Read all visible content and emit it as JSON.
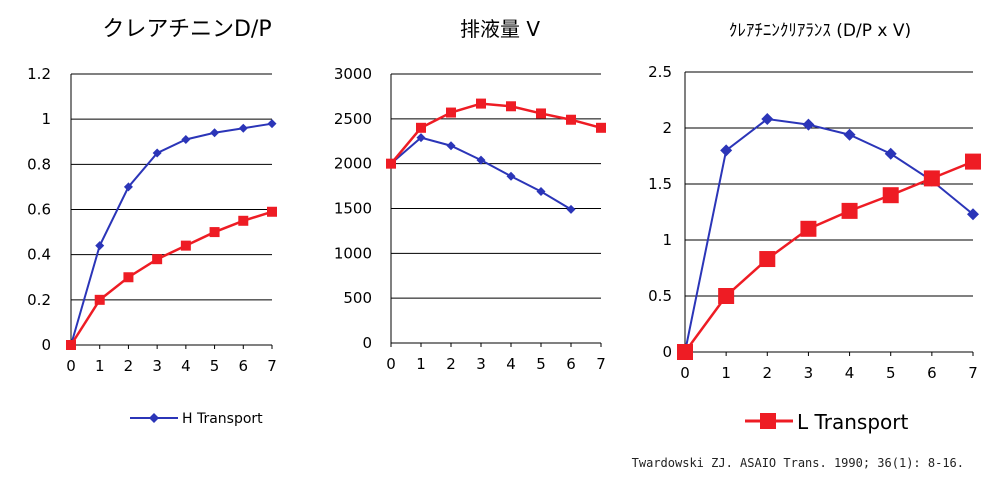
{
  "chart_data": [
    {
      "type": "line",
      "title": "クレアチニンD/P",
      "x": [
        0,
        1,
        2,
        3,
        4,
        5,
        6,
        7
      ],
      "ylim": [
        0,
        1.2
      ],
      "y_ticks": [
        "0",
        "0.2",
        "0.4",
        "0.6",
        "0.8",
        "1",
        "1.2"
      ],
      "x_ticks": [
        "0",
        "1",
        "2",
        "3",
        "4",
        "5",
        "6",
        "7"
      ],
      "grid": "horizontal",
      "series": [
        {
          "name": "H Transport",
          "color": "#2b35b8",
          "marker": "diamond",
          "values": [
            0,
            0.44,
            0.7,
            0.85,
            0.91,
            0.94,
            0.96,
            0.98
          ]
        },
        {
          "name": "L Transport",
          "color": "#ee1c24",
          "marker": "square",
          "values": [
            0,
            0.2,
            0.3,
            0.38,
            0.44,
            0.5,
            0.55,
            0.59
          ]
        }
      ]
    },
    {
      "type": "line",
      "title": "排液量 V",
      "x": [
        0,
        1,
        2,
        3,
        4,
        5,
        6,
        7
      ],
      "ylim": [
        0,
        3000
      ],
      "y_ticks": [
        "0",
        "500",
        "1000",
        "1500",
        "2000",
        "2500",
        "3000"
      ],
      "x_ticks": [
        "0",
        "1",
        "2",
        "3",
        "4",
        "5",
        "6",
        "7"
      ],
      "grid": "horizontal",
      "series": [
        {
          "name": "H Transport",
          "color": "#2b35b8",
          "marker": "diamond",
          "values": [
            2000,
            2290,
            2200,
            2040,
            1860,
            1690,
            1490,
            null
          ]
        },
        {
          "name": "L Transport",
          "color": "#ee1c24",
          "marker": "square",
          "values": [
            2000,
            2400,
            2570,
            2670,
            2640,
            2560,
            2490,
            2400
          ]
        }
      ]
    },
    {
      "type": "line",
      "title": "ｸﾚｱﾁﾆﾝｸﾘｱﾗﾝｽ (D/P x V)",
      "x": [
        0,
        1,
        2,
        3,
        4,
        5,
        6,
        7
      ],
      "ylim": [
        0,
        2.5
      ],
      "y_ticks": [
        "0",
        "0.5",
        "1",
        "1.5",
        "2",
        "2.5"
      ],
      "x_ticks": [
        "0",
        "1",
        "2",
        "3",
        "4",
        "5",
        "6",
        "7"
      ],
      "grid": "horizontal",
      "series": [
        {
          "name": "H Transport",
          "color": "#2b35b8",
          "marker": "diamond",
          "values": [
            0,
            1.8,
            2.08,
            2.03,
            1.94,
            1.77,
            1.53,
            1.23
          ]
        },
        {
          "name": "L Transport",
          "color": "#ee1c24",
          "marker": "square",
          "values": [
            0,
            0.5,
            0.83,
            1.1,
            1.26,
            1.4,
            1.55,
            1.7
          ]
        }
      ]
    }
  ],
  "legends": {
    "h_label": "H Transport",
    "l_label": "L Transport"
  },
  "citation": "Twardowski ZJ. ASAIO Trans. 1990; 36(1): 8-16."
}
